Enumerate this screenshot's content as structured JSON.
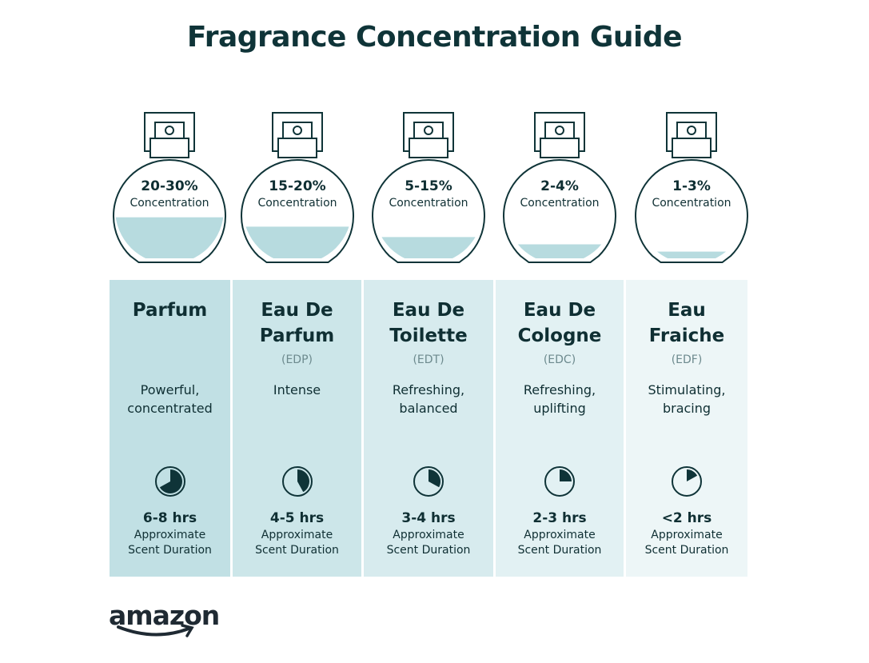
{
  "title": "Fragrance Concentration Guide",
  "colors": {
    "ink": "#0f3438",
    "liquid": "#b7dbdf",
    "column_shades": [
      "#c1e0e4",
      "#cce6e9",
      "#d7ebee",
      "#e2f1f3",
      "#edf6f7"
    ]
  },
  "concentration_label": "Concentration",
  "duration_label_1": "Approximate",
  "duration_label_2": "Scent Duration",
  "types": [
    {
      "concentration": "20-30%",
      "fill_level": 0.41,
      "name_1": "Parfum",
      "name_2": "",
      "abbr": "",
      "desc_1": "Powerful,",
      "desc_2": "concentrated",
      "duration": "6-8 hrs",
      "clock_fraction": 0.67
    },
    {
      "concentration": "15-20%",
      "fill_level": 0.32,
      "name_1": "Eau De",
      "name_2": "Parfum",
      "abbr": "(EDP)",
      "desc_1": "Intense",
      "desc_2": "",
      "duration": "4-5 hrs",
      "clock_fraction": 0.42
    },
    {
      "concentration": "5-15%",
      "fill_level": 0.22,
      "name_1": "Eau De",
      "name_2": "Toilette",
      "abbr": "(EDT)",
      "desc_1": "Refreshing,",
      "desc_2": "balanced",
      "duration": "3-4 hrs",
      "clock_fraction": 0.33
    },
    {
      "concentration": "2-4%",
      "fill_level": 0.15,
      "name_1": "Eau De",
      "name_2": "Cologne",
      "abbr": "(EDC)",
      "desc_1": "Refreshing,",
      "desc_2": "uplifting",
      "duration": "2-3 hrs",
      "clock_fraction": 0.25
    },
    {
      "concentration": "1-3%",
      "fill_level": 0.08,
      "name_1": "Eau",
      "name_2": "Fraiche",
      "abbr": "(EDF)",
      "desc_1": "Stimulating,",
      "desc_2": "bracing",
      "duration": "<2 hrs",
      "clock_fraction": 0.17
    }
  ],
  "logo": "amazon"
}
